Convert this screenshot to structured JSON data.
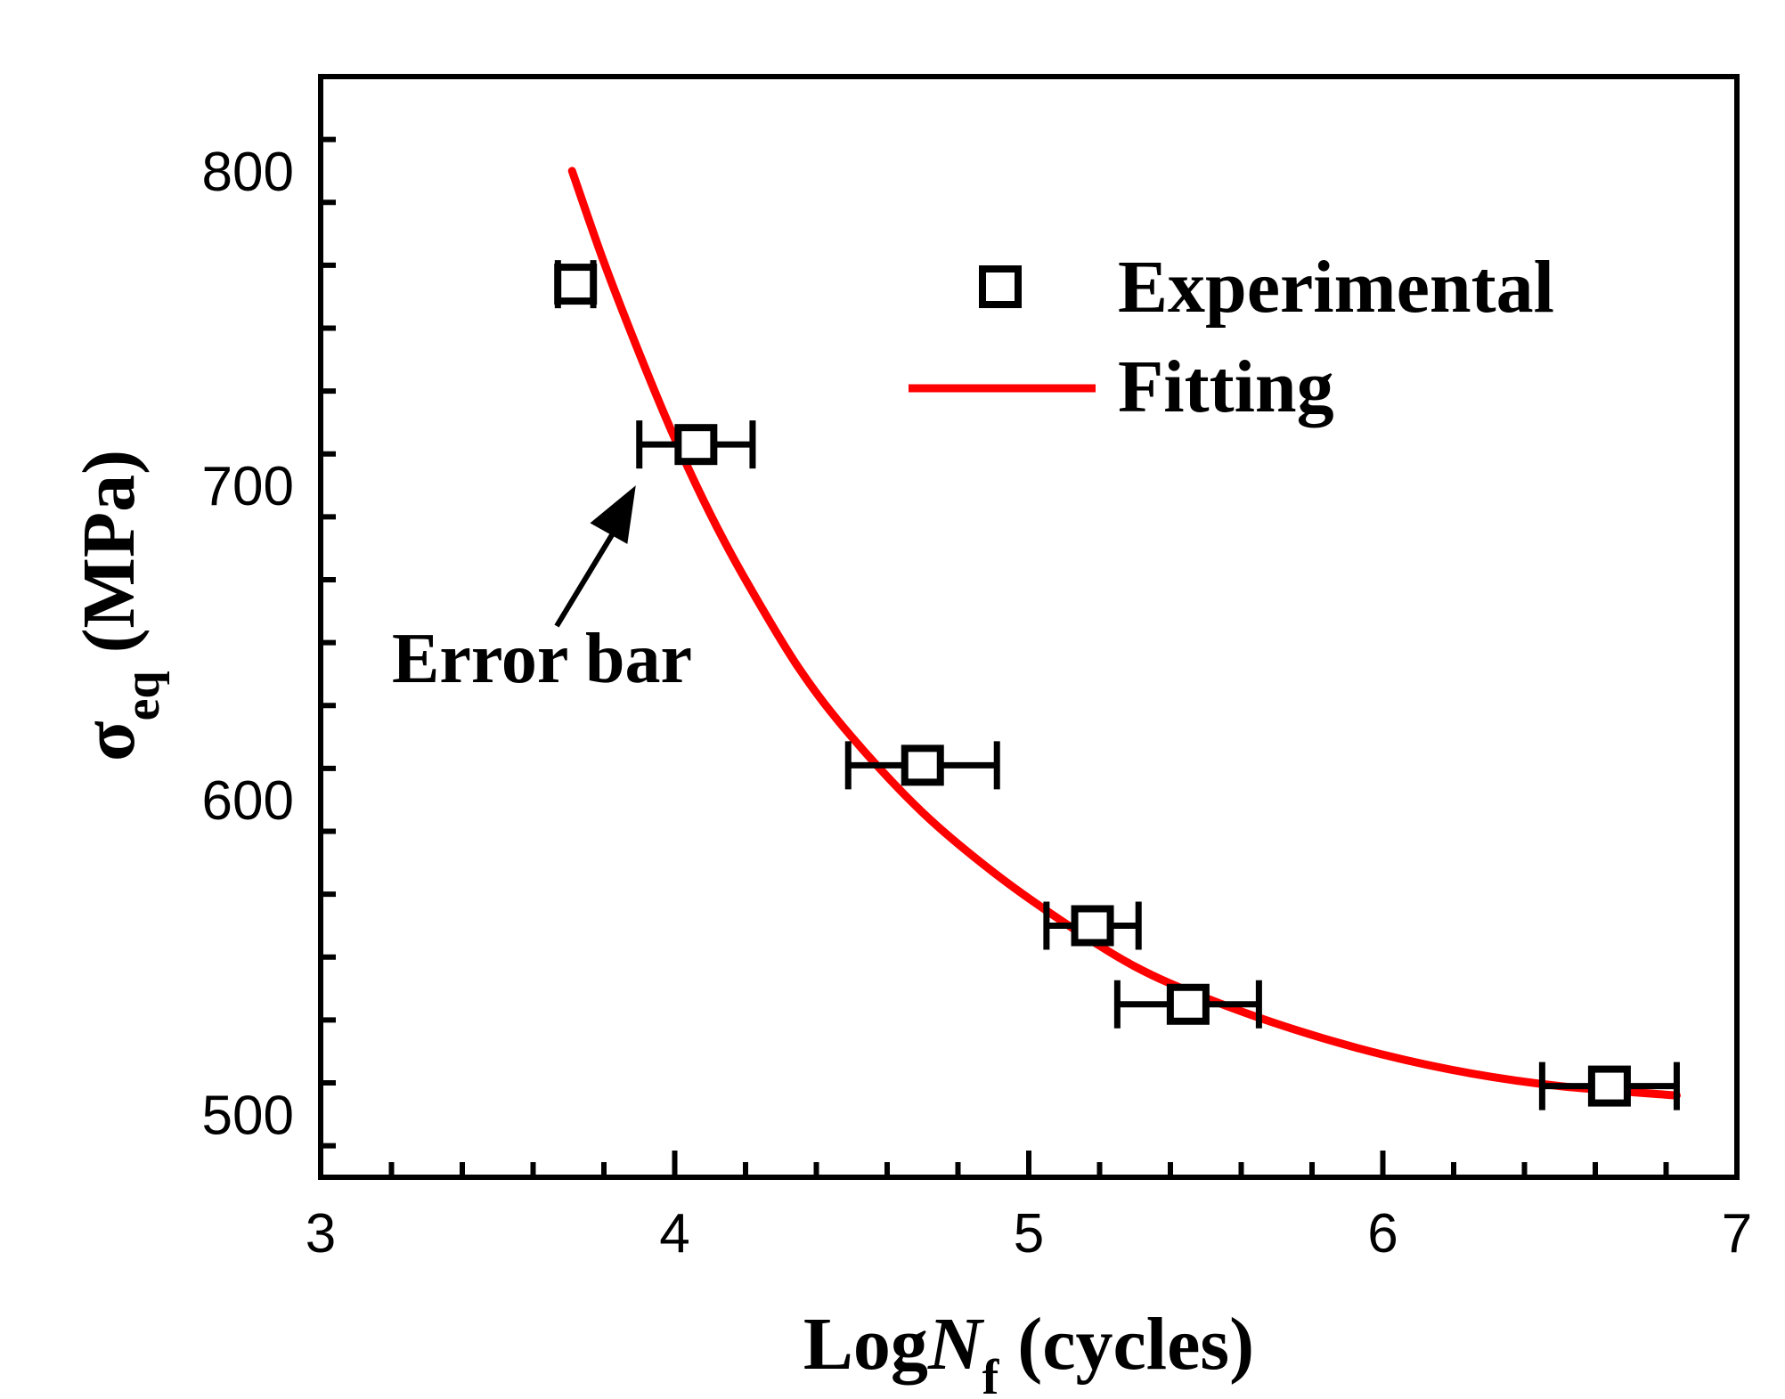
{
  "chart_data": {
    "type": "scatter",
    "title": "",
    "xlabel": {
      "main": "Log",
      "italic": "N",
      "sub": "f",
      "unit": " (cycles)"
    },
    "ylabel": {
      "symbol": "σ",
      "sub": "eq",
      "unit": "(MPa)"
    },
    "xlim": [
      3,
      7
    ],
    "ylim": [
      480,
      830
    ],
    "x_ticks": [
      3,
      4,
      5,
      6,
      7
    ],
    "x_tick_labels": [
      "3",
      "4",
      "5",
      "6",
      "7"
    ],
    "y_ticks": [
      500,
      600,
      700,
      800
    ],
    "y_tick_labels": [
      "500",
      "600",
      "700",
      "800"
    ],
    "grid": false,
    "legend_position": "top-right",
    "legend": [
      {
        "label": "Experimental",
        "marker": "open-square",
        "color": "#000000"
      },
      {
        "label": "Fitting",
        "marker": "line",
        "color": "#ff0000"
      }
    ],
    "series": [
      {
        "name": "Experimental",
        "kind": "points-with-x-error",
        "points": [
          {
            "x": 3.72,
            "y": 764,
            "xerr_low": 0.05,
            "xerr_high": 0.05
          },
          {
            "x": 4.06,
            "y": 713,
            "xerr_low": 0.16,
            "xerr_high": 0.16
          },
          {
            "x": 4.7,
            "y": 611,
            "xerr_low": 0.21,
            "xerr_high": 0.21
          },
          {
            "x": 5.18,
            "y": 560,
            "xerr_low": 0.13,
            "xerr_high": 0.13
          },
          {
            "x": 5.45,
            "y": 535,
            "xerr_low": 0.2,
            "xerr_high": 0.2
          },
          {
            "x": 6.64,
            "y": 509,
            "xerr_low": 0.19,
            "xerr_high": 0.19
          }
        ]
      },
      {
        "name": "Fitting",
        "kind": "curve",
        "x": [
          3.71,
          3.8,
          3.9,
          4.0,
          4.1,
          4.2,
          4.35,
          4.5,
          4.7,
          4.9,
          5.1,
          5.3,
          5.5,
          5.75,
          6.0,
          6.25,
          6.5,
          6.83
        ],
        "y": [
          800,
          771,
          742,
          715,
          691,
          670,
          642,
          620,
          596,
          577,
          561,
          547,
          537,
          527,
          519,
          513,
          509,
          506
        ]
      }
    ],
    "annotations": [
      {
        "text": "Error bar",
        "arrow_to": {
          "x": 3.89,
          "y": 700
        },
        "text_anchor": {
          "x": 3.22,
          "y": 650
        }
      }
    ]
  }
}
